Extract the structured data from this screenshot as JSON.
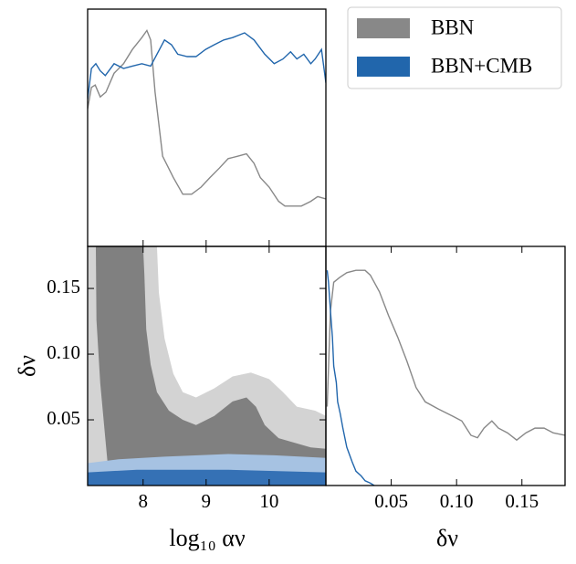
{
  "chart_data": [
    {
      "type": "line",
      "xlim": [
        7.12,
        10.9
      ],
      "ylim": [
        0,
        1
      ],
      "legend": "upper right",
      "series": [
        {
          "name": "BBN",
          "color": "#888888",
          "x": [
            7.12,
            7.18,
            7.24,
            7.32,
            7.41,
            7.54,
            7.69,
            7.83,
            7.98,
            8.06,
            8.12,
            8.19,
            8.31,
            8.48,
            8.63,
            8.77,
            8.92,
            9.06,
            9.21,
            9.35,
            9.5,
            9.64,
            9.76,
            9.86,
            10.0,
            10.15,
            10.25,
            10.37,
            10.51,
            10.66,
            10.77,
            10.9
          ],
          "values": [
            0.58,
            0.67,
            0.68,
            0.63,
            0.65,
            0.73,
            0.77,
            0.83,
            0.88,
            0.91,
            0.87,
            0.65,
            0.38,
            0.29,
            0.22,
            0.22,
            0.25,
            0.29,
            0.33,
            0.37,
            0.38,
            0.39,
            0.35,
            0.29,
            0.25,
            0.19,
            0.17,
            0.17,
            0.17,
            0.19,
            0.21,
            0.2
          ]
        },
        {
          "name": "BBN+CMB",
          "color": "#2166ac",
          "x": [
            7.12,
            7.18,
            7.25,
            7.32,
            7.4,
            7.54,
            7.69,
            7.83,
            7.98,
            8.12,
            8.22,
            8.34,
            8.45,
            8.55,
            8.7,
            8.84,
            8.99,
            9.13,
            9.28,
            9.42,
            9.61,
            9.76,
            9.93,
            10.08,
            10.22,
            10.34,
            10.44,
            10.55,
            10.66,
            10.73,
            10.83,
            10.9
          ],
          "values": [
            0.62,
            0.75,
            0.77,
            0.74,
            0.72,
            0.77,
            0.75,
            0.76,
            0.77,
            0.76,
            0.81,
            0.87,
            0.85,
            0.81,
            0.8,
            0.8,
            0.83,
            0.85,
            0.87,
            0.88,
            0.9,
            0.87,
            0.81,
            0.77,
            0.79,
            0.82,
            0.79,
            0.81,
            0.77,
            0.79,
            0.83,
            0.69
          ]
        }
      ]
    },
    {
      "type": "contour",
      "xlabel": "log₁₀ αν",
      "ylabel": "δν",
      "xlim": [
        7.12,
        10.9
      ],
      "ylim": [
        0,
        0.182
      ],
      "xticks": [
        8,
        9,
        10
      ],
      "yticks": [
        0.05,
        {
          "value": 0.1,
          "label": "0.10"
        },
        0.15
      ],
      "series": [
        {
          "regions": [
            {
              "color": "#d3d3d3",
              "x": [
                7.12,
                7.12,
                8.22,
                8.25,
                8.34,
                8.48,
                8.63,
                8.84,
                9.13,
                9.42,
                9.71,
                10.0,
                10.22,
                10.44,
                10.73,
                10.9,
                10.9
              ],
              "y": [
                0,
                0.182,
                0.182,
                0.147,
                0.112,
                0.085,
                0.071,
                0.067,
                0.074,
                0.083,
                0.086,
                0.081,
                0.071,
                0.06,
                0.057,
                0.053,
                0
              ]
            },
            {
              "color": "#808080",
              "x": [
                7.47,
                7.4,
                7.32,
                7.26,
                7.25,
                8.0,
                8.02,
                8.05,
                8.12,
                8.22,
                8.41,
                8.63,
                8.84,
                9.13,
                9.42,
                9.64,
                9.79,
                9.93,
                10.15,
                10.37,
                10.66,
                10.9,
                10.9
              ],
              "y": [
                0,
                0.036,
                0.078,
                0.126,
                0.182,
                0.182,
                0.161,
                0.119,
                0.092,
                0.071,
                0.057,
                0.05,
                0.046,
                0.053,
                0.064,
                0.067,
                0.06,
                0.046,
                0.036,
                0.033,
                0.029,
                0.028,
                0
              ]
            }
          ]
        },
        {
          "regions": [
            {
              "color": "#a6c2e2",
              "x": [
                7.12,
                7.61,
                8.34,
                9.35,
                10.08,
                10.9,
                10.9,
                7.12
              ],
              "y": [
                0.017,
                0.02,
                0.022,
                0.024,
                0.023,
                0.021,
                0,
                0
              ]
            },
            {
              "color": "#3571b5",
              "x": [
                7.12,
                7.9,
                9.35,
                10.9,
                10.9,
                7.12
              ],
              "y": [
                0.01,
                0.012,
                0.012,
                0.01,
                0,
                0
              ]
            }
          ]
        }
      ]
    },
    {
      "type": "line",
      "xlabel": "δν",
      "xlim": [
        0,
        0.183
      ],
      "ylim": [
        0,
        1
      ],
      "xticks": [
        0.05,
        {
          "value": 0.1,
          "label": "0.10"
        },
        0.15
      ],
      "series": [
        {
          "color": "#888888",
          "x": [
            0.001,
            0.0035,
            0.006,
            0.0105,
            0.016,
            0.023,
            0.03,
            0.034,
            0.041,
            0.048,
            0.055,
            0.062,
            0.069,
            0.076,
            0.086,
            0.097,
            0.104,
            0.111,
            0.116,
            0.121,
            0.127,
            0.132,
            0.139,
            0.146,
            0.153,
            0.16,
            0.167,
            0.174,
            0.183
          ],
          "values": [
            0.33,
            0.73,
            0.85,
            0.87,
            0.89,
            0.9,
            0.9,
            0.88,
            0.81,
            0.71,
            0.62,
            0.52,
            0.41,
            0.35,
            0.32,
            0.29,
            0.27,
            0.21,
            0.2,
            0.24,
            0.27,
            0.24,
            0.22,
            0.19,
            0.22,
            0.24,
            0.24,
            0.22,
            0.21
          ]
        },
        {
          "color": "#2166ac",
          "x": [
            0.001,
            0.002,
            0.0035,
            0.005,
            0.006,
            0.008,
            0.009,
            0.011,
            0.013,
            0.016,
            0.02,
            0.023,
            0.027,
            0.03,
            0.034,
            0.037
          ],
          "values": [
            0.9,
            0.85,
            0.73,
            0.62,
            0.5,
            0.43,
            0.35,
            0.3,
            0.24,
            0.16,
            0.1,
            0.06,
            0.04,
            0.02,
            0.01,
            0
          ]
        }
      ]
    }
  ]
}
